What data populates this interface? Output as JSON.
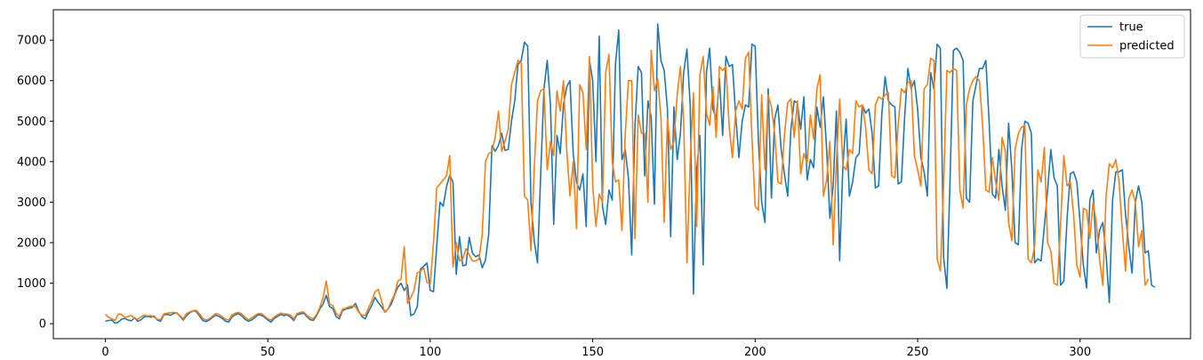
{
  "chart_data": {
    "type": "line",
    "title": "",
    "xlabel": "",
    "ylabel": "",
    "xlim": [
      -16,
      334
    ],
    "ylim": [
      -370,
      7750
    ],
    "xticks": [
      0,
      50,
      100,
      150,
      200,
      250,
      300
    ],
    "yticks": [
      0,
      1000,
      2000,
      3000,
      4000,
      5000,
      6000,
      7000
    ],
    "grid": false,
    "legend": {
      "position": "top-right"
    },
    "series": [
      {
        "name": "true",
        "color": "#1f77b4",
        "values": [
          60,
          80,
          90,
          10,
          40,
          110,
          130,
          90,
          70,
          150,
          60,
          100,
          170,
          180,
          160,
          190,
          90,
          60,
          220,
          230,
          210,
          250,
          270,
          180,
          90,
          200,
          270,
          320,
          300,
          190,
          80,
          50,
          90,
          160,
          210,
          180,
          130,
          60,
          40,
          170,
          220,
          250,
          190,
          110,
          60,
          90,
          150,
          220,
          210,
          160,
          90,
          40,
          130,
          180,
          230,
          200,
          220,
          160,
          80,
          220,
          240,
          260,
          180,
          100,
          80,
          200,
          360,
          480,
          700,
          420,
          380,
          180,
          120,
          320,
          360,
          380,
          400,
          500,
          300,
          170,
          120,
          300,
          450,
          650,
          520,
          420,
          300,
          360,
          480,
          700,
          900,
          1000,
          820,
          960,
          200,
          240,
          420,
          1350,
          1420,
          1500,
          820,
          790,
          1930,
          3000,
          2900,
          3380,
          3660,
          3500,
          1220,
          2150,
          1430,
          1450,
          2130,
          1740,
          1650,
          1700,
          1380,
          1570,
          2220,
          4390,
          4260,
          4400,
          4700,
          4280,
          4300,
          5000,
          5500,
          6400,
          6500,
          6950,
          6850,
          3000,
          2050,
          1500,
          3700,
          5800,
          6500,
          5400,
          2450,
          4650,
          4200,
          5400,
          5850,
          6000,
          4200,
          3500,
          3300,
          3700,
          2400,
          6500,
          6000,
          4000,
          7100,
          2900,
          2450,
          3300,
          3050,
          6400,
          7250,
          4050,
          4300,
          3600,
          1700,
          4850,
          6350,
          6200,
          3650,
          5500,
          5100,
          2950,
          7400,
          6500,
          6250,
          5300,
          2150,
          5350,
          4050,
          4700,
          6200,
          6780,
          5400,
          730,
          3800,
          4650,
          1450,
          6200,
          6800,
          5300,
          5050,
          6050,
          4650,
          6600,
          6350,
          6400,
          5150,
          4100,
          5000,
          5400,
          5350,
          6900,
          6850,
          4500,
          3000,
          2500,
          5800,
          3100,
          5050,
          5400,
          4300,
          3700,
          3150,
          4800,
          5500,
          5450,
          4800,
          5600,
          3550,
          4050,
          3850,
          5350,
          4850,
          5600,
          4300,
          2600,
          3400,
          5250,
          1550,
          3900,
          5050,
          3150,
          3500,
          4100,
          4200,
          5400,
          5200,
          5300,
          4700,
          3350,
          3400,
          5200,
          6100,
          5500,
          5400,
          5350,
          3450,
          3500,
          5100,
          6300,
          5800,
          6000,
          5300,
          4100,
          3750,
          3150,
          6200,
          5800,
          6900,
          6800,
          1650,
          870,
          3600,
          6750,
          6800,
          6700,
          6500,
          3100,
          3000,
          5500,
          5900,
          6300,
          6300,
          6500,
          5000,
          3200,
          3100,
          4300,
          3400,
          2800,
          4950,
          3800,
          2000,
          1950,
          4300,
          5000,
          4950,
          4700,
          1500,
          1600,
          1550,
          2400,
          3300,
          4300,
          3600,
          3400,
          950,
          1050,
          2600,
          3700,
          3750,
          3500,
          2500,
          1450,
          880,
          3050,
          3300,
          1750,
          2300,
          2500,
          1700,
          520,
          3050,
          3750,
          3750,
          3800,
          2700,
          1900,
          1250,
          3000,
          3400,
          3000,
          1750,
          1800,
          950,
          900
        ]
      },
      {
        "name": "predicted",
        "color": "#ff7f0e",
        "values": [
          230,
          160,
          120,
          80,
          240,
          230,
          150,
          180,
          200,
          130,
          110,
          170,
          210,
          190,
          200,
          160,
          110,
          100,
          240,
          260,
          270,
          280,
          260,
          200,
          120,
          250,
          290,
          320,
          330,
          240,
          130,
          90,
          120,
          190,
          250,
          230,
          170,
          110,
          90,
          220,
          260,
          280,
          240,
          160,
          100,
          140,
          200,
          250,
          250,
          190,
          120,
          90,
          170,
          220,
          260,
          240,
          240,
          210,
          120,
          250,
          280,
          290,
          210,
          150,
          120,
          230,
          400,
          640,
          1050,
          480,
          450,
          260,
          180,
          360,
          380,
          420,
          440,
          420,
          280,
          210,
          200,
          390,
          560,
          790,
          850,
          560,
          280,
          360,
          560,
          720,
          1050,
          1100,
          1900,
          500,
          640,
          820,
          1250,
          1300,
          1380,
          1020,
          980,
          2000,
          3350,
          3450,
          3550,
          3650,
          4150,
          1400,
          2000,
          1550,
          1600,
          1850,
          1700,
          1550,
          1550,
          1600,
          2200,
          4000,
          4200,
          4250,
          4600,
          5250,
          4250,
          4500,
          4800,
          5900,
          6200,
          6500,
          6450,
          3150,
          3050,
          1800,
          3800,
          5500,
          5750,
          5800,
          3800,
          4500,
          4150,
          5750,
          5250,
          6000,
          4300,
          3150,
          4000,
          2350,
          5900,
          5700,
          4300,
          6600,
          3400,
          2400,
          3200,
          3000,
          6200,
          6650,
          4000,
          3500,
          3550,
          2300,
          4650,
          6000,
          6000,
          2100,
          5150,
          4700,
          4700,
          3000,
          6750,
          5750,
          6050,
          5100,
          2500,
          5050,
          4300,
          4500,
          5650,
          6350,
          5000,
          1500,
          4000,
          5700,
          2400,
          6150,
          6600,
          5200,
          4900,
          5850,
          4600,
          6350,
          6250,
          6350,
          4850,
          4100,
          5250,
          5500,
          5300,
          6550,
          6700,
          4600,
          2900,
          2800,
          5650,
          3800,
          5650,
          5350,
          4700,
          3500,
          3450,
          4650,
          5450,
          5550,
          4600,
          5500,
          3700,
          4200,
          3950,
          5150,
          4550,
          5800,
          6150,
          3150,
          3550,
          4500,
          1950,
          4000,
          5550,
          3900,
          3800,
          4300,
          4200,
          5500,
          5350,
          5400,
          4850,
          3800,
          3700,
          5400,
          5600,
          5550,
          5650,
          5700,
          3650,
          3600,
          4900,
          5800,
          5700,
          5950,
          6000,
          4150,
          3800,
          3400,
          5800,
          5900,
          6550,
          6500,
          1600,
          1300,
          3400,
          6250,
          6200,
          6300,
          6250,
          3300,
          2850,
          5400,
          5800,
          6000,
          6100,
          6000,
          4900,
          3300,
          3250,
          4100,
          3500,
          3050,
          4600,
          4250,
          2500,
          2050,
          4300,
          4700,
          4850,
          4900,
          1600,
          1500,
          1900,
          3800,
          3500,
          4350,
          2000,
          1800,
          1000,
          950,
          2450,
          4150,
          3400,
          3500,
          2700,
          1450,
          1150,
          2850,
          2800,
          2100,
          3000,
          2500,
          1600,
          950,
          3150,
          3950,
          3850,
          4050,
          3500,
          2300,
          1300,
          3100,
          3300,
          3000,
          1900,
          2300,
          950,
          1100
        ]
      }
    ]
  }
}
